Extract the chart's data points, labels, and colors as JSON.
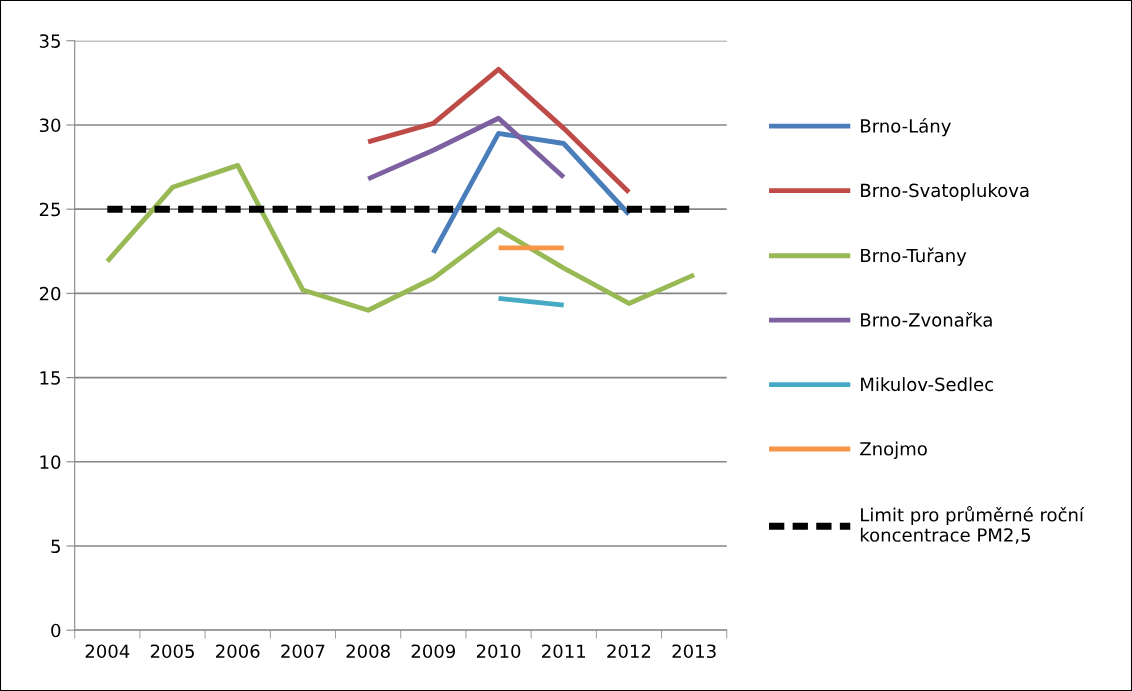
{
  "chart_data": {
    "type": "line",
    "categories": [
      "2004",
      "2005",
      "2006",
      "2007",
      "2008",
      "2009",
      "2010",
      "2011",
      "2012",
      "2013"
    ],
    "ylim": [
      0,
      35
    ],
    "yticks": [
      0,
      5,
      10,
      15,
      20,
      25,
      30,
      35
    ],
    "grid": "y",
    "legend": "right",
    "marker": "none",
    "series": [
      {
        "name": "Brno-Lány",
        "color": "#4a7ebb",
        "values": [
          null,
          null,
          null,
          null,
          null,
          22.4,
          29.5,
          28.9,
          24.7,
          null
        ]
      },
      {
        "name": "Brno-Svatoplukova",
        "color": "#be4b48",
        "values": [
          null,
          null,
          null,
          null,
          29.0,
          30.1,
          33.3,
          29.8,
          26.0,
          null
        ]
      },
      {
        "name": "Brno-Tuřany",
        "color": "#98b954",
        "values": [
          21.9,
          26.3,
          27.6,
          20.2,
          19.0,
          20.9,
          23.8,
          21.5,
          19.4,
          21.1
        ]
      },
      {
        "name": "Brno-Zvonařka",
        "color": "#7d60a0",
        "values": [
          null,
          null,
          null,
          null,
          26.8,
          28.5,
          30.4,
          26.9,
          null,
          null
        ]
      },
      {
        "name": "Mikulov-Sedlec",
        "color": "#46aac5",
        "values": [
          null,
          null,
          null,
          null,
          null,
          null,
          19.7,
          19.3,
          null,
          null
        ]
      },
      {
        "name": "Znojmo",
        "color": "#f79646",
        "values": [
          null,
          null,
          null,
          null,
          null,
          null,
          22.7,
          22.7,
          null,
          null
        ]
      },
      {
        "name": "Limit pro průměrné roční\nkoncentrace PM2,5",
        "color": "#000000",
        "line_style": "dashed",
        "values": [
          25,
          25,
          25,
          25,
          25,
          25,
          25,
          25,
          25,
          25
        ]
      }
    ]
  }
}
